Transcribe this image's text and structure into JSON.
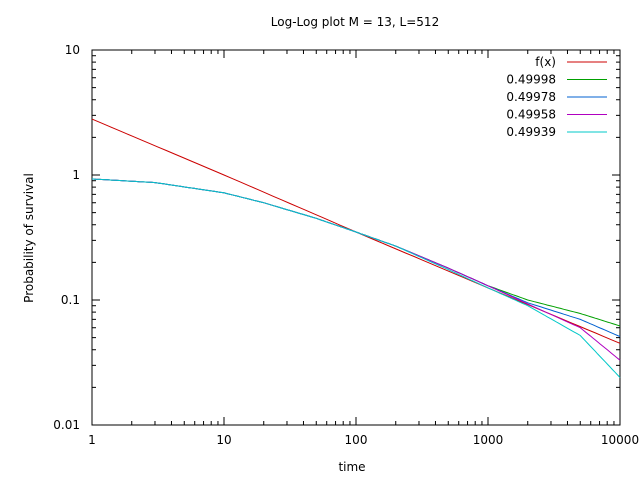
{
  "chart_data": {
    "type": "line",
    "title": "Log-Log plot M = 13, L=512",
    "xlabel": "time",
    "ylabel": "Probability of survival",
    "xscale": "log",
    "yscale": "log",
    "xlim": [
      1,
      10000
    ],
    "ylim": [
      0.01,
      10
    ],
    "grid": false,
    "legend_position": "top-right",
    "x_ticks": [
      1,
      10,
      100,
      1000,
      10000
    ],
    "x_tick_labels": [
      "1",
      "10",
      "100",
      "1000",
      "10000"
    ],
    "y_ticks": [
      0.01,
      0.1,
      1,
      10
    ],
    "y_tick_labels": [
      "0.01",
      "0.1",
      "1",
      "10"
    ],
    "series": [
      {
        "name": "f(x)",
        "color": "#cc0000",
        "x": [
          1,
          10,
          100,
          1000,
          10000
        ],
        "y": [
          2.8,
          1.0,
          0.35,
          0.125,
          0.045
        ]
      },
      {
        "name": "0.49998",
        "color": "#00a000",
        "x": [
          1,
          3,
          10,
          20,
          50,
          100,
          200,
          500,
          1000,
          2000,
          5000,
          10000
        ],
        "y": [
          0.93,
          0.87,
          0.72,
          0.6,
          0.45,
          0.35,
          0.27,
          0.18,
          0.13,
          0.1,
          0.078,
          0.062
        ]
      },
      {
        "name": "0.49978",
        "color": "#0060d0",
        "x": [
          1,
          3,
          10,
          20,
          50,
          100,
          200,
          500,
          1000,
          2000,
          5000,
          10000
        ],
        "y": [
          0.93,
          0.87,
          0.72,
          0.6,
          0.45,
          0.35,
          0.27,
          0.18,
          0.13,
          0.095,
          0.07,
          0.051
        ]
      },
      {
        "name": "0.49958",
        "color": "#b000c0",
        "x": [
          1,
          3,
          10,
          20,
          50,
          100,
          200,
          500,
          1000,
          2000,
          5000,
          10000
        ],
        "y": [
          0.93,
          0.87,
          0.72,
          0.6,
          0.45,
          0.35,
          0.27,
          0.18,
          0.13,
          0.093,
          0.06,
          0.033
        ]
      },
      {
        "name": "0.49939",
        "color": "#00c8c8",
        "x": [
          1,
          3,
          10,
          20,
          50,
          100,
          200,
          500,
          1000,
          2000,
          5000,
          10000
        ],
        "y": [
          0.93,
          0.87,
          0.72,
          0.6,
          0.45,
          0.35,
          0.27,
          0.175,
          0.125,
          0.09,
          0.052,
          0.024
        ]
      }
    ]
  }
}
